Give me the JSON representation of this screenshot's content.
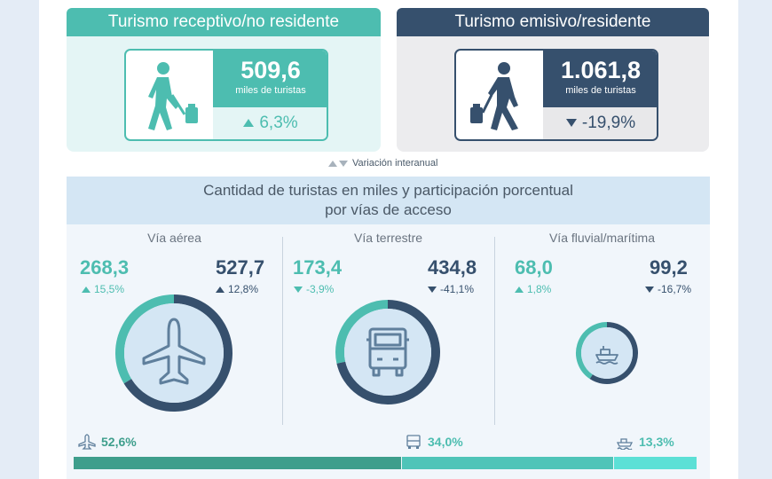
{
  "receptivo": {
    "title": "Turismo receptivo/no residente",
    "value": "509,6",
    "unit": "miles de turistas",
    "change": "6,3%"
  },
  "emisivo": {
    "title": "Turismo emisivo/residente",
    "value": "1.061,8",
    "unit": "miles de turistas",
    "change": "-19,9%"
  },
  "legend_text": "Variación interanual",
  "section_title_line1": "Cantidad de turistas en miles y participación porcentual",
  "section_title_line2": "por vías de acceso",
  "colors": {
    "teal": "#4dbdb0",
    "dark": "#36506d",
    "light_teal": "#5ce0d6",
    "mid_teal": "#4fc4b8",
    "deep_teal": "#3e9e8c"
  },
  "chart_data": {
    "type": "pie",
    "units": "miles de turistas",
    "categories": [
      {
        "name": "Vía aérea",
        "icon": "airplane-icon",
        "receptivo": 268.3,
        "receptivo_label": "268,3",
        "receptivo_change": "15,5%",
        "receptivo_dir": "up",
        "emisivo": 527.7,
        "emisivo_label": "527,7",
        "emisivo_change": "12,8%",
        "emisivo_dir": "up",
        "share": 52.6,
        "share_label": "52,6%"
      },
      {
        "name": "Vía terrestre",
        "icon": "truck-icon",
        "receptivo": 173.4,
        "receptivo_label": "173,4",
        "receptivo_change": "-3,9%",
        "receptivo_dir": "down",
        "emisivo": 434.8,
        "emisivo_label": "434,8",
        "emisivo_change": "-41,1%",
        "emisivo_dir": "down",
        "share": 34.0,
        "share_label": "34,0%"
      },
      {
        "name": "Vía fluvial/marítima",
        "icon": "ship-icon",
        "receptivo": 68.0,
        "receptivo_label": "68,0",
        "receptivo_change": "1,8%",
        "receptivo_dir": "up",
        "emisivo": 99.2,
        "emisivo_label": "99,2",
        "emisivo_change": "-16,7%",
        "emisivo_dir": "down",
        "share": 13.3,
        "share_label": "13,3%"
      }
    ]
  }
}
